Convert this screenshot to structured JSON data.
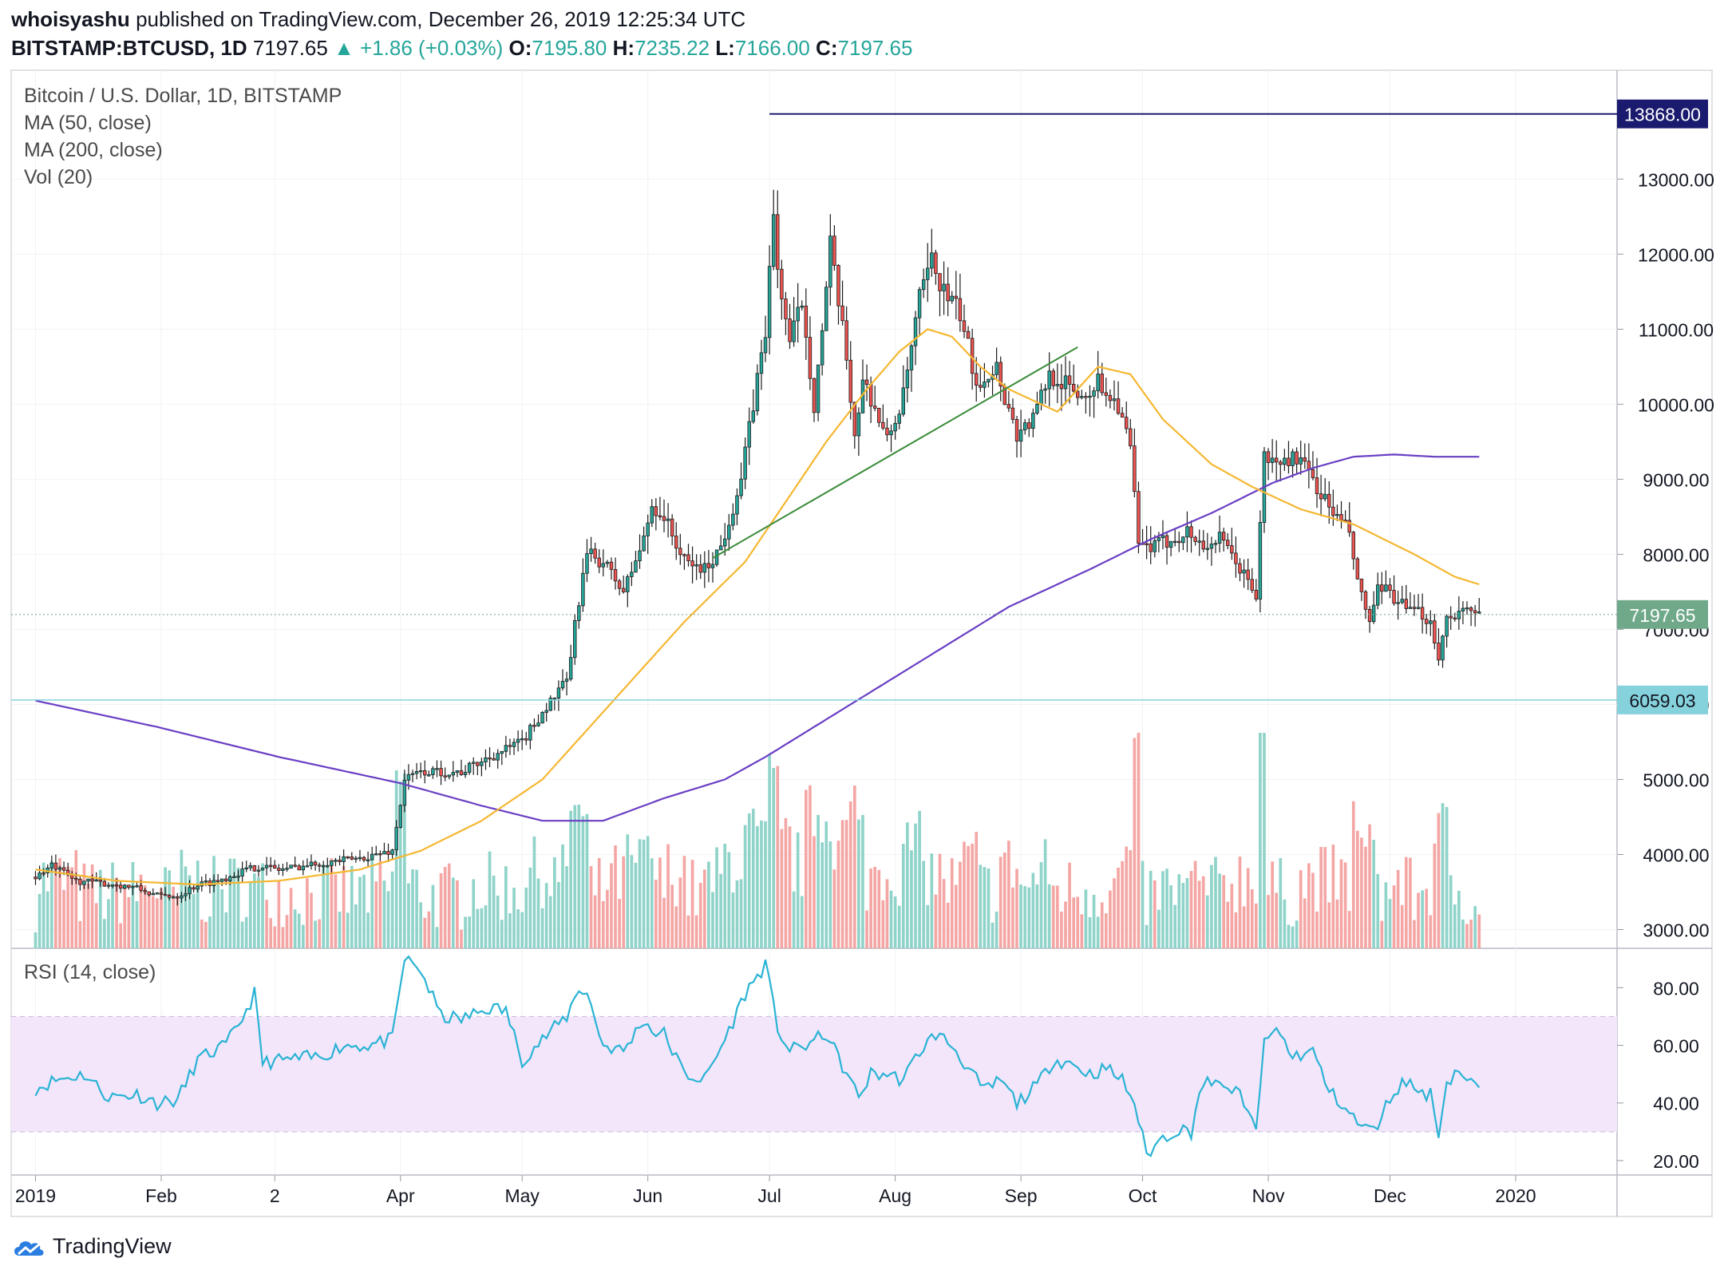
{
  "header": {
    "author": "whoisyashu",
    "published": "published on TradingView.com, December 26, 2019 12:25:34 UTC",
    "symbol": "BITSTAMP:BTCUSD, 1D",
    "last": "7197.65",
    "change": "▲ +1.86 (+0.03%)",
    "open_label": "O:",
    "open": "7195.80",
    "high_label": "H:",
    "high": "7235.22",
    "low_label": "L:",
    "low": "7166.00",
    "close_label": "C:",
    "close": "7197.65"
  },
  "legend": {
    "title": "Bitcoin / U.S. Dollar, 1D, BITSTAMP",
    "ma50": "MA (50, close)",
    "ma200": "MA (200, close)",
    "vol": "Vol (20)"
  },
  "rsi_label": "RSI (14, close)",
  "logo": "TradingView",
  "colors": {
    "up": "#26a69a",
    "down": "#ef5350",
    "ma50": "#f5b731",
    "ma200": "#6a3fc4",
    "resistance": "#1a1a6e",
    "support": "#86d2dc",
    "trend": "#3c8c3c",
    "rsi_line": "#2ab3d4",
    "rsi_band": "#f3e6fb",
    "price_badge": "#6fa98a"
  },
  "chart_data": {
    "type": "candlestick",
    "title": "Bitcoin / U.S. Dollar, 1D, BITSTAMP",
    "price_axis": {
      "ticks": [
        3000,
        4000,
        5000,
        6000,
        7000,
        8000,
        9000,
        10000,
        11000,
        12000,
        13000
      ],
      "tick_labels": [
        "3000.00",
        "4000.00",
        "5000.00",
        "6000.00",
        "7000.00",
        "8000.00",
        "9000.00",
        "10000.00",
        "11000.00",
        "12000.00",
        "13000.00"
      ],
      "range": [
        2750,
        14450
      ]
    },
    "time_axis": {
      "labels": [
        "2019",
        "Feb",
        "2",
        "Apr",
        "May",
        "Jun",
        "Jul",
        "Aug",
        "Sep",
        "Oct",
        "Nov",
        "Dec",
        "2020"
      ],
      "days": [
        0,
        31,
        59,
        90,
        120,
        151,
        181,
        212,
        243,
        273,
        304,
        334,
        365
      ]
    },
    "markers": {
      "resistance": {
        "value": 13868.0,
        "label": "13868.00"
      },
      "support": {
        "value": 6059.03,
        "label": "6059.03"
      },
      "last_price": {
        "value": 7197.65,
        "label": "7197.65"
      }
    },
    "trendline": {
      "from": {
        "day": 167,
        "price": 7950
      },
      "to": {
        "day": 257,
        "price": 10760
      }
    },
    "close_keypoints": [
      [
        0,
        3700
      ],
      [
        4,
        3850
      ],
      [
        10,
        3650
      ],
      [
        20,
        3600
      ],
      [
        25,
        3550
      ],
      [
        30,
        3450
      ],
      [
        35,
        3450
      ],
      [
        40,
        3600
      ],
      [
        45,
        3650
      ],
      [
        52,
        3800
      ],
      [
        56,
        3850
      ],
      [
        60,
        3800
      ],
      [
        66,
        3850
      ],
      [
        72,
        3900
      ],
      [
        80,
        3950
      ],
      [
        88,
        4050
      ],
      [
        91,
        5000
      ],
      [
        95,
        5100
      ],
      [
        105,
        5100
      ],
      [
        112,
        5300
      ],
      [
        120,
        5500
      ],
      [
        125,
        5900
      ],
      [
        131,
        6300
      ],
      [
        134,
        7400
      ],
      [
        136,
        8000
      ],
      [
        140,
        7900
      ],
      [
        145,
        7500
      ],
      [
        150,
        8200
      ],
      [
        152,
        8650
      ],
      [
        155,
        8500
      ],
      [
        160,
        7900
      ],
      [
        165,
        7800
      ],
      [
        169,
        8100
      ],
      [
        174,
        9000
      ],
      [
        177,
        10000
      ],
      [
        180,
        11000
      ],
      [
        182,
        12500
      ],
      [
        183,
        11800
      ],
      [
        186,
        10800
      ],
      [
        189,
        11400
      ],
      [
        192,
        10000
      ],
      [
        195,
        11500
      ],
      [
        196,
        12100
      ],
      [
        200,
        10600
      ],
      [
        202,
        9600
      ],
      [
        204,
        10300
      ],
      [
        206,
        10100
      ],
      [
        210,
        9500
      ],
      [
        214,
        10100
      ],
      [
        218,
        11400
      ],
      [
        221,
        11900
      ],
      [
        224,
        11500
      ],
      [
        228,
        11200
      ],
      [
        232,
        10300
      ],
      [
        237,
        10500
      ],
      [
        239,
        10100
      ],
      [
        242,
        9600
      ],
      [
        246,
        9800
      ],
      [
        250,
        10400
      ],
      [
        253,
        10300
      ],
      [
        258,
        10100
      ],
      [
        262,
        10300
      ],
      [
        267,
        10000
      ],
      [
        270,
        9400
      ],
      [
        272,
        8100
      ],
      [
        276,
        8100
      ],
      [
        280,
        8200
      ],
      [
        284,
        8300
      ],
      [
        288,
        8100
      ],
      [
        292,
        8200
      ],
      [
        296,
        7900
      ],
      [
        300,
        7550
      ],
      [
        301,
        7450
      ],
      [
        303,
        9300
      ],
      [
        306,
        9200
      ],
      [
        311,
        9300
      ],
      [
        315,
        9000
      ],
      [
        317,
        8800
      ],
      [
        320,
        8550
      ],
      [
        324,
        8300
      ],
      [
        326,
        7600
      ],
      [
        329,
        7100
      ],
      [
        331,
        7500
      ],
      [
        334,
        7500
      ],
      [
        338,
        7250
      ],
      [
        342,
        7200
      ],
      [
        344,
        7100
      ],
      [
        346,
        6650
      ],
      [
        348,
        7150
      ],
      [
        351,
        7250
      ],
      [
        354,
        7200
      ],
      [
        356,
        7197.65
      ]
    ],
    "ma50_keypoints": [
      [
        0,
        3800
      ],
      [
        20,
        3650
      ],
      [
        40,
        3600
      ],
      [
        60,
        3650
      ],
      [
        80,
        3800
      ],
      [
        95,
        4050
      ],
      [
        110,
        4450
      ],
      [
        125,
        5000
      ],
      [
        140,
        5900
      ],
      [
        160,
        7100
      ],
      [
        175,
        7900
      ],
      [
        185,
        8700
      ],
      [
        195,
        9500
      ],
      [
        205,
        10200
      ],
      [
        213,
        10700
      ],
      [
        220,
        11000
      ],
      [
        226,
        10900
      ],
      [
        233,
        10500
      ],
      [
        240,
        10200
      ],
      [
        252,
        9900
      ],
      [
        262,
        10500
      ],
      [
        270,
        10400
      ],
      [
        278,
        9800
      ],
      [
        290,
        9200
      ],
      [
        300,
        8900
      ],
      [
        312,
        8600
      ],
      [
        325,
        8400
      ],
      [
        340,
        8000
      ],
      [
        350,
        7700
      ],
      [
        356,
        7600
      ]
    ],
    "ma200_keypoints": [
      [
        0,
        6050
      ],
      [
        30,
        5700
      ],
      [
        60,
        5300
      ],
      [
        90,
        4950
      ],
      [
        110,
        4650
      ],
      [
        125,
        4450
      ],
      [
        140,
        4450
      ],
      [
        155,
        4750
      ],
      [
        170,
        5000
      ],
      [
        180,
        5300
      ],
      [
        195,
        5800
      ],
      [
        210,
        6300
      ],
      [
        225,
        6800
      ],
      [
        240,
        7300
      ],
      [
        260,
        7800
      ],
      [
        275,
        8200
      ],
      [
        290,
        8550
      ],
      [
        305,
        8950
      ],
      [
        315,
        9150
      ],
      [
        325,
        9300
      ],
      [
        335,
        9330
      ],
      [
        345,
        9300
      ],
      [
        356,
        9300
      ]
    ],
    "volume_note": "volume bars colored by candle direction (not labeled in source)",
    "rsi": {
      "label": "RSI (14, close)",
      "ticks": [
        20,
        40,
        60,
        80
      ],
      "tick_labels": [
        "20.00",
        "40.00",
        "60.00",
        "80.00"
      ],
      "range": [
        15,
        92
      ],
      "band": [
        30,
        70
      ],
      "keypoints": [
        [
          0,
          45
        ],
        [
          5,
          48
        ],
        [
          12,
          50
        ],
        [
          18,
          42
        ],
        [
          25,
          43
        ],
        [
          30,
          40
        ],
        [
          35,
          41
        ],
        [
          40,
          55
        ],
        [
          47,
          60
        ],
        [
          52,
          72
        ],
        [
          54,
          78
        ],
        [
          56,
          54
        ],
        [
          62,
          55
        ],
        [
          70,
          56
        ],
        [
          76,
          60
        ],
        [
          82,
          60
        ],
        [
          88,
          62
        ],
        [
          91,
          90
        ],
        [
          95,
          86
        ],
        [
          100,
          70
        ],
        [
          105,
          69
        ],
        [
          112,
          73
        ],
        [
          116,
          72
        ],
        [
          120,
          55
        ],
        [
          125,
          62
        ],
        [
          131,
          70
        ],
        [
          134,
          80
        ],
        [
          136,
          78
        ],
        [
          140,
          60
        ],
        [
          145,
          58
        ],
        [
          150,
          69
        ],
        [
          152,
          65
        ],
        [
          155,
          64
        ],
        [
          160,
          50
        ],
        [
          165,
          48
        ],
        [
          170,
          62
        ],
        [
          175,
          78
        ],
        [
          180,
          88
        ],
        [
          183,
          66
        ],
        [
          186,
          58
        ],
        [
          190,
          60
        ],
        [
          195,
          64
        ],
        [
          200,
          50
        ],
        [
          203,
          42
        ],
        [
          206,
          50
        ],
        [
          210,
          50
        ],
        [
          214,
          48
        ],
        [
          218,
          58
        ],
        [
          222,
          64
        ],
        [
          226,
          60
        ],
        [
          230,
          52
        ],
        [
          234,
          44
        ],
        [
          238,
          48
        ],
        [
          242,
          40
        ],
        [
          247,
          46
        ],
        [
          251,
          55
        ],
        [
          255,
          54
        ],
        [
          260,
          50
        ],
        [
          264,
          52
        ],
        [
          268,
          48
        ],
        [
          271,
          40
        ],
        [
          274,
          22
        ],
        [
          278,
          28
        ],
        [
          282,
          31
        ],
        [
          285,
          30
        ],
        [
          287,
          44
        ],
        [
          290,
          48
        ],
        [
          293,
          44
        ],
        [
          296,
          46
        ],
        [
          298,
          38
        ],
        [
          301,
          32
        ],
        [
          303,
          60
        ],
        [
          306,
          66
        ],
        [
          310,
          56
        ],
        [
          315,
          58
        ],
        [
          319,
          44
        ],
        [
          322,
          40
        ],
        [
          326,
          33
        ],
        [
          330,
          30
        ],
        [
          332,
          36
        ],
        [
          335,
          44
        ],
        [
          338,
          48
        ],
        [
          341,
          44
        ],
        [
          344,
          43
        ],
        [
          346,
          30
        ],
        [
          348,
          47
        ],
        [
          351,
          52
        ],
        [
          353,
          47
        ],
        [
          356,
          46
        ]
      ]
    }
  }
}
